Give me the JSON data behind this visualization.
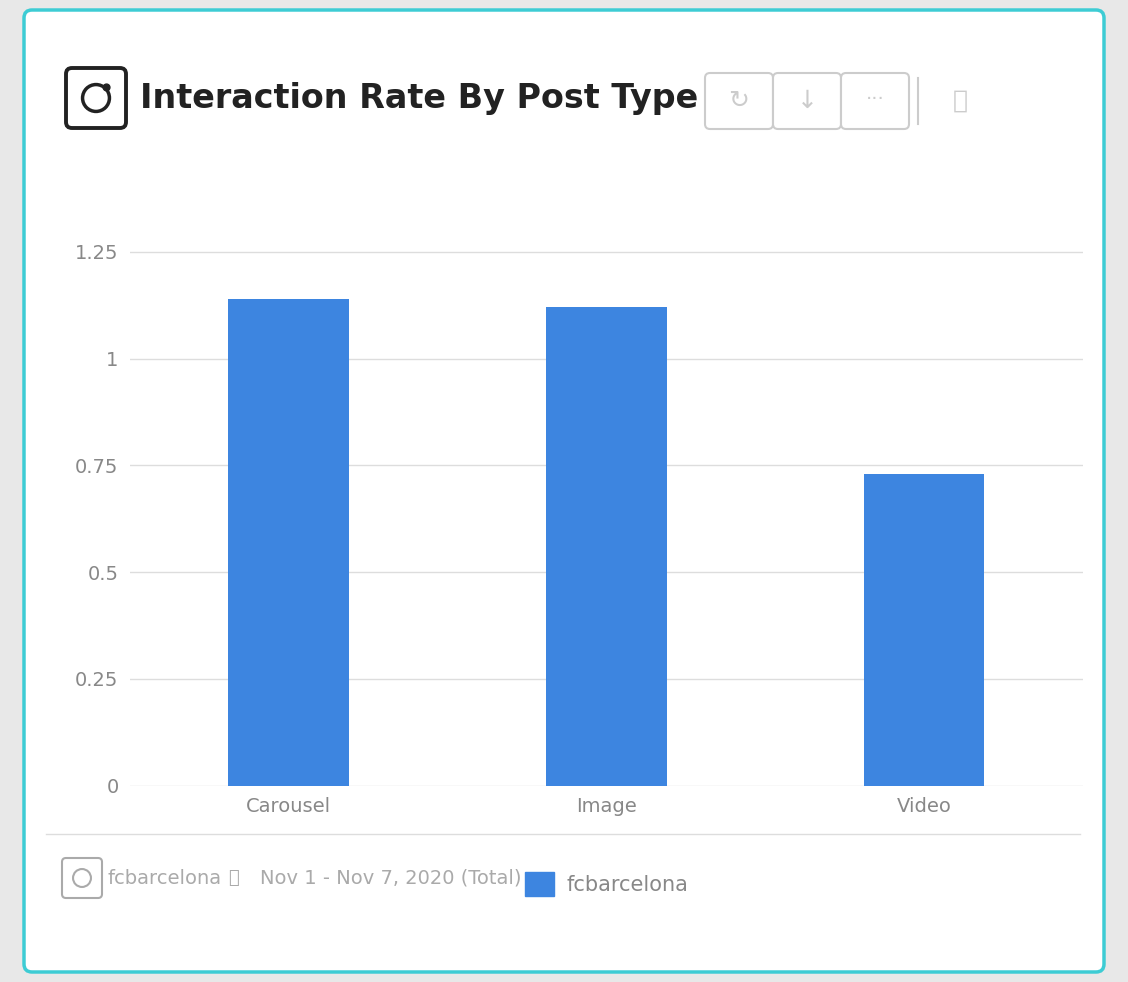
{
  "title": "Interaction Rate By Post Type",
  "categories": [
    "Carousel",
    "Image",
    "Video"
  ],
  "values": [
    1.14,
    1.12,
    0.73
  ],
  "bar_color": "#3d85e0",
  "yticks": [
    0,
    0.25,
    0.5,
    0.75,
    1.0,
    1.25
  ],
  "ytick_labels": [
    "0",
    "0.25",
    "0.5",
    "0.75",
    "1",
    "1.25"
  ],
  "ylim": [
    0,
    1.38
  ],
  "legend_label": "fcbarcelona",
  "footer_account": "fcbarcelona",
  "footer_date": "Nov 1 - Nov 7, 2020 (Total)",
  "bg_color": "#e8e8e8",
  "card_color": "#ffffff",
  "border_color": "#3dccd4",
  "tick_color": "#888888",
  "grid_color": "#dddddd",
  "title_color": "#222222",
  "footer_color": "#aaaaaa",
  "button_color": "#cccccc",
  "bar_width": 0.38
}
